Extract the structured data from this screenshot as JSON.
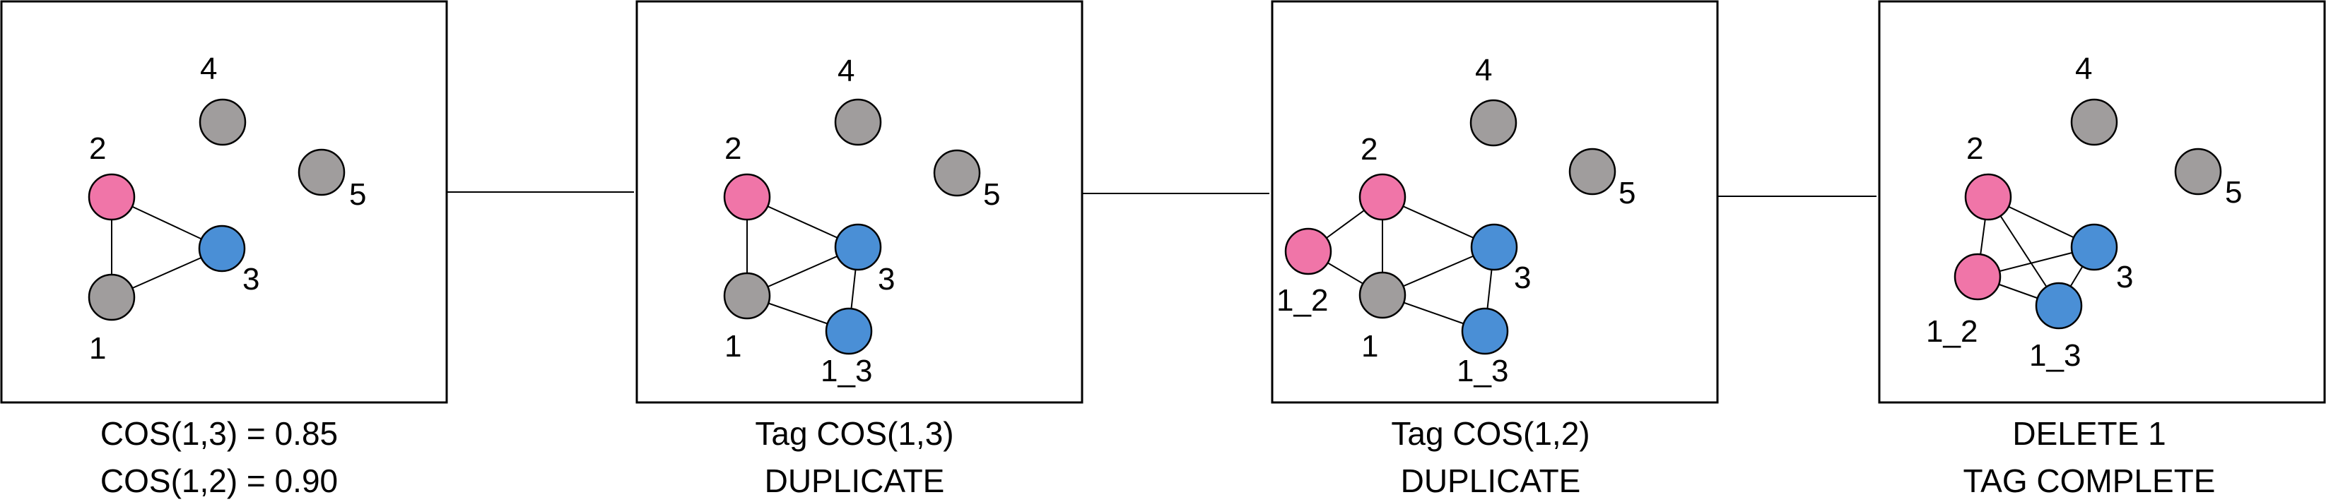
{
  "colors": {
    "gray": "#a09d9d",
    "pink": "#f075a8",
    "blue": "#4a8fd6",
    "outline": "#000000",
    "background": "#ffffff"
  },
  "panels": [
    {
      "nodes": [
        {
          "id": "4",
          "color": "gray"
        },
        {
          "id": "5",
          "color": "gray"
        },
        {
          "id": "2",
          "color": "pink"
        },
        {
          "id": "3",
          "color": "blue"
        },
        {
          "id": "1",
          "color": "gray"
        }
      ],
      "edges": [
        [
          "2",
          "3"
        ],
        [
          "2",
          "1"
        ],
        [
          "1",
          "3"
        ]
      ],
      "captions": [
        "COS(1,3) = 0.85",
        "COS(1,2) = 0.90"
      ]
    },
    {
      "nodes": [
        {
          "id": "4",
          "color": "gray"
        },
        {
          "id": "5",
          "color": "gray"
        },
        {
          "id": "2",
          "color": "pink"
        },
        {
          "id": "3",
          "color": "blue"
        },
        {
          "id": "1",
          "color": "gray"
        },
        {
          "id": "1_3",
          "color": "blue"
        }
      ],
      "edges": [
        [
          "2",
          "3"
        ],
        [
          "2",
          "1"
        ],
        [
          "1",
          "3"
        ],
        [
          "1",
          "1_3"
        ],
        [
          "3",
          "1_3"
        ]
      ],
      "captions": [
        "Tag COS(1,3)",
        "DUPLICATE"
      ]
    },
    {
      "nodes": [
        {
          "id": "4",
          "color": "gray"
        },
        {
          "id": "5",
          "color": "gray"
        },
        {
          "id": "2",
          "color": "pink"
        },
        {
          "id": "1_2",
          "color": "pink"
        },
        {
          "id": "3",
          "color": "blue"
        },
        {
          "id": "1",
          "color": "gray"
        },
        {
          "id": "1_3",
          "color": "blue"
        }
      ],
      "edges": [
        [
          "2",
          "1_2"
        ],
        [
          "2",
          "1"
        ],
        [
          "2",
          "3"
        ],
        [
          "1_2",
          "1"
        ],
        [
          "1",
          "3"
        ],
        [
          "1",
          "1_3"
        ],
        [
          "3",
          "1_3"
        ]
      ],
      "captions": [
        "Tag COS(1,2)",
        "DUPLICATE"
      ]
    },
    {
      "nodes": [
        {
          "id": "4",
          "color": "gray"
        },
        {
          "id": "5",
          "color": "gray"
        },
        {
          "id": "2",
          "color": "pink"
        },
        {
          "id": "3",
          "color": "blue"
        },
        {
          "id": "1_2",
          "color": "pink"
        },
        {
          "id": "1_3",
          "color": "blue"
        }
      ],
      "edges": [
        [
          "2",
          "1_2"
        ],
        [
          "2",
          "3"
        ],
        [
          "2",
          "1_3"
        ],
        [
          "1_2",
          "3"
        ],
        [
          "1_2",
          "1_3"
        ],
        [
          "3",
          "1_3"
        ]
      ],
      "captions": [
        "DELETE 1",
        "TAG COMPLETE"
      ]
    }
  ]
}
